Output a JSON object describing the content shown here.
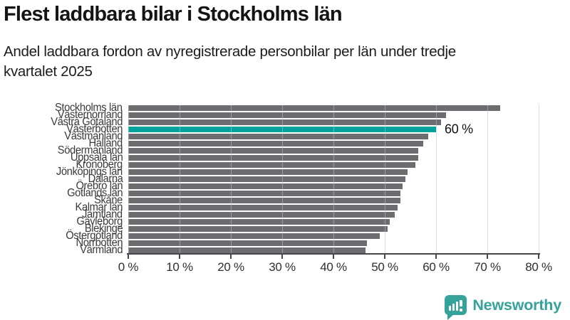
{
  "header": {
    "title": "Flest laddbara bilar i Stockholms län",
    "subtitle_lines": [
      "Andel laddbara fordon av nyregistrerade personbilar per län under tredje",
      "kvartalet 2025"
    ]
  },
  "chart_data": {
    "type": "bar",
    "orientation": "horizontal",
    "title": "Flest laddbara bilar i Stockholms län",
    "subtitle": "Andel laddbara fordon av nyregistrerade personbilar per län under tredje kvartalet 2025",
    "categories": [
      "Stockholms län",
      "Västernorrland",
      "Västra Götaland",
      "Västerbotten",
      "Västmanland",
      "Halland",
      "Södermanland",
      "Uppsala län",
      "Kronoberg",
      "Jönköpings län",
      "Dalarna",
      "Örebro län",
      "Gotlands län",
      "Skåne",
      "Kalmar län",
      "Jämtland",
      "Gävleborg",
      "Blekinge",
      "Östergötland",
      "Norrbotten",
      "Värmland"
    ],
    "values": [
      72.5,
      62,
      61,
      60,
      58.5,
      57.5,
      56.5,
      56.5,
      56,
      54.5,
      54,
      53.5,
      53,
      53,
      52.5,
      52,
      51,
      50.5,
      49,
      46.5,
      46.3
    ],
    "unit": "%",
    "xlim": [
      0,
      80
    ],
    "x_ticks": [
      "0 %",
      "10 %",
      "20 %",
      "30 %",
      "40 %",
      "50 %",
      "60 %",
      "70 %",
      "80 %"
    ],
    "grid": true,
    "bar_color": "#6c6c71",
    "highlight": {
      "category": "Västerbotten",
      "index": 3,
      "value": 60,
      "label": "60 %",
      "color": "#00a29b"
    }
  },
  "footer": {
    "brand": "Newsworthy",
    "brand_color": "#35a39a",
    "logo_icon": "bar-chart-speech-bubble-icon"
  }
}
